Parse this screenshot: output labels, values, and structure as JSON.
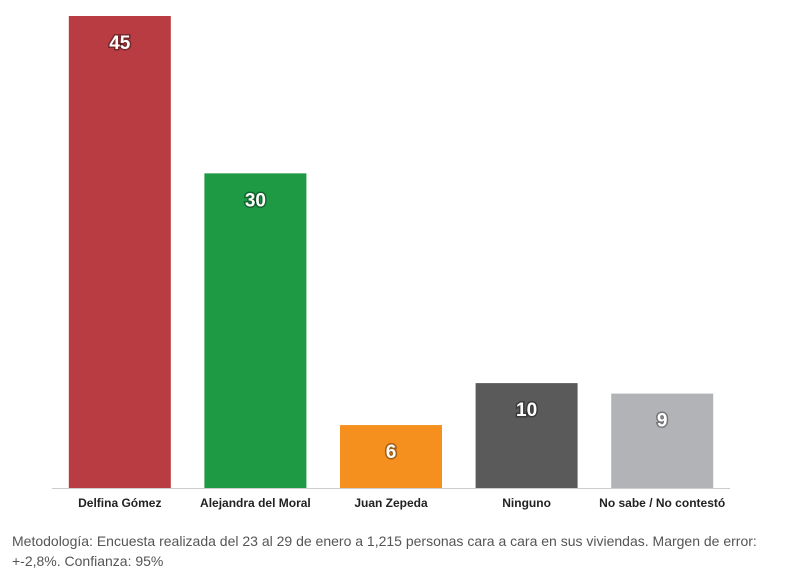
{
  "chart_data": {
    "type": "bar",
    "categories": [
      "Delfina Gómez",
      "Alejandra del Moral",
      "Juan Zepeda",
      "Ninguno",
      "No sabe / No contestó"
    ],
    "values": [
      45,
      30,
      6,
      10,
      9
    ],
    "colors": [
      "#b83c42",
      "#1e9a45",
      "#f5901e",
      "#5a5a5a",
      "#b2b3b6"
    ],
    "note": "Metodología: Encuesta realizada del 23 al 29 de enero a 1,215 personas cara a cara en sus viviendas. Margen de error: +-2,8%. Confianza: 95%"
  }
}
